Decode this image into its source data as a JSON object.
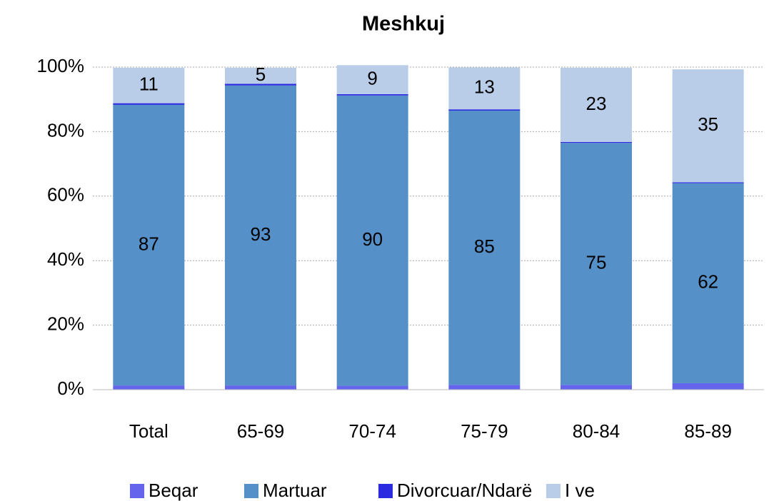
{
  "chart_data": {
    "type": "stacked_bar_100",
    "title": "Meshkuj",
    "categories": [
      "Total",
      "65-69",
      "70-74",
      "75-79",
      "80-84",
      "85-89"
    ],
    "series": [
      {
        "name": "Beqar",
        "color": "#6464ec",
        "values": [
          1.3,
          1.3,
          1.2,
          1.5,
          1.5,
          2.0
        ]
      },
      {
        "name": "Martuar",
        "color": "#5591c8",
        "values": [
          87,
          93,
          90,
          85,
          75,
          62
        ],
        "data_labels": true
      },
      {
        "name": "Divorcuar/Ndarë",
        "color": "#2b2be0",
        "values": [
          0.5,
          0.5,
          0.4,
          0.4,
          0.3,
          0.3
        ]
      },
      {
        "name": "I ve",
        "color": "#b9cde8",
        "values": [
          11,
          5,
          9,
          13,
          23,
          35
        ],
        "data_labels": true
      }
    ],
    "ylim": [
      0,
      100
    ],
    "yticks": [
      {
        "value": 0,
        "label": "0%"
      },
      {
        "value": 20,
        "label": "20%"
      },
      {
        "value": 40,
        "label": "40%"
      },
      {
        "value": 60,
        "label": "60%"
      },
      {
        "value": 80,
        "label": "80%"
      },
      {
        "value": 100,
        "label": "100%"
      }
    ],
    "grid": true,
    "legend": "bottom"
  }
}
